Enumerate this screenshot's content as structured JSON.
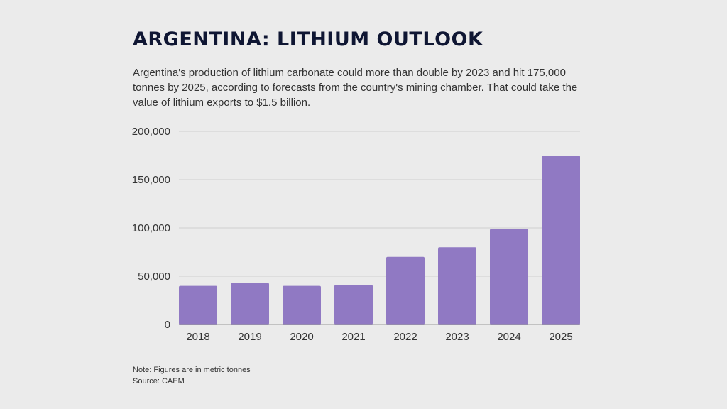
{
  "title": "ARGENTINA: LITHIUM OUTLOOK",
  "subtitle": "Argentina's production of lithium carbonate could more than double by 2023 and hit 175,000 tonnes by 2025, according to forecasts from the country's mining chamber. That could take the value of lithium exports to $1.5 billion.",
  "note": "Note: Figures are in metric tonnes",
  "source": "Source: CAEM",
  "chart_data": {
    "type": "bar",
    "categories": [
      "2018",
      "2019",
      "2020",
      "2021",
      "2022",
      "2023",
      "2024",
      "2025"
    ],
    "values": [
      40000,
      43000,
      40000,
      41000,
      70000,
      80000,
      99000,
      175000
    ],
    "ylim": [
      0,
      200000
    ],
    "yticks": [
      "0",
      "50,000",
      "100,000",
      "150,000",
      "200,000"
    ],
    "ytick_values": [
      0,
      50000,
      100000,
      150000,
      200000
    ],
    "grid": true,
    "bar_color": "#9079c3",
    "grid_color": "#cfcfcf",
    "axis_color": "#9a9a9a"
  }
}
